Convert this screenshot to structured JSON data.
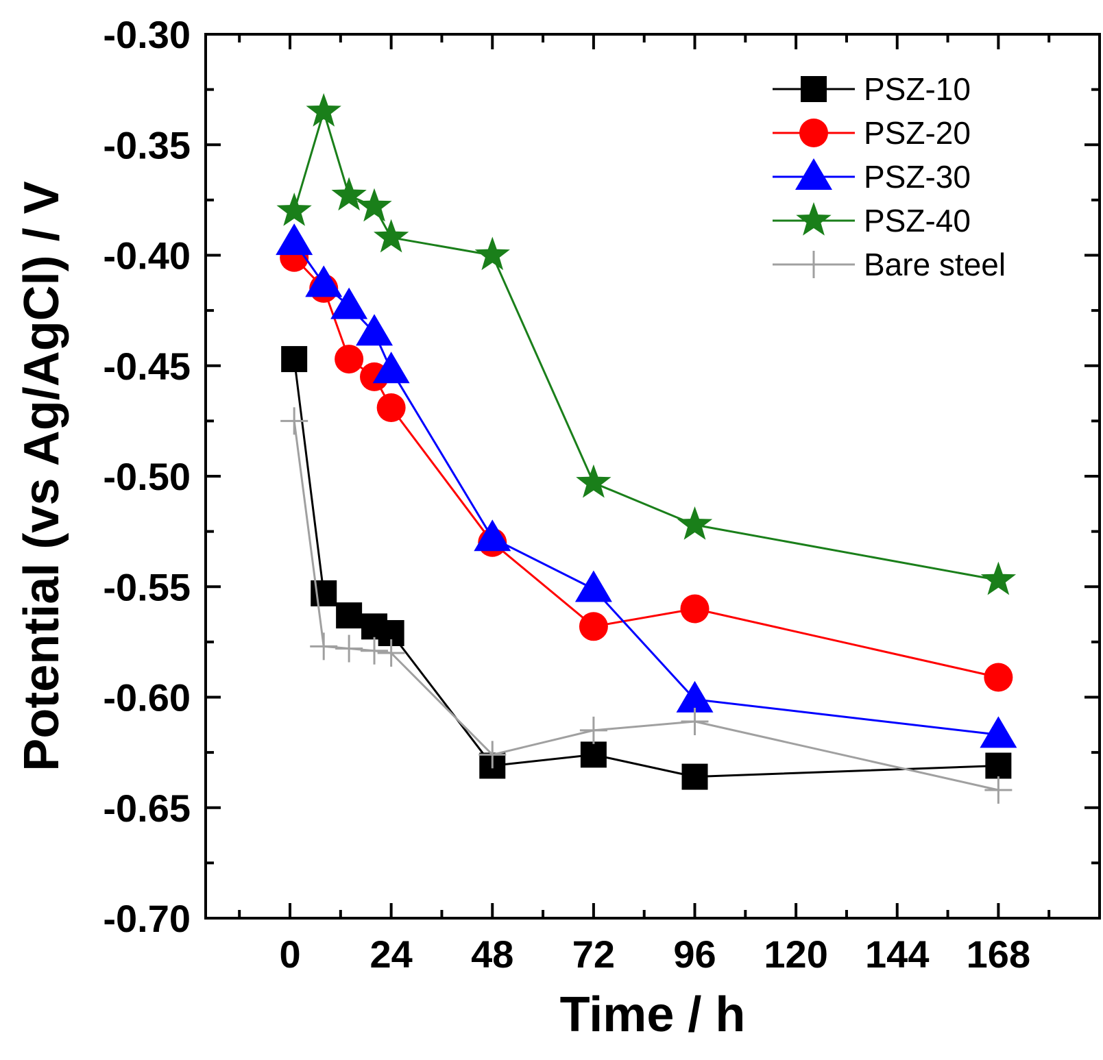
{
  "chart_data": {
    "type": "line",
    "xlabel": "Time / h",
    "ylabel": "Potential (vs Ag/AgCl) / V",
    "xlim": [
      -20,
      192
    ],
    "ylim": [
      -0.7,
      -0.3
    ],
    "x_ticks": [
      "0",
      "24",
      "48",
      "72",
      "96",
      "120",
      "144",
      "168"
    ],
    "y_ticks": [
      "-0.30",
      "-0.35",
      "-0.40",
      "-0.45",
      "-0.50",
      "-0.55",
      "-0.60",
      "-0.65",
      "-0.70"
    ],
    "legend_position": "top-right",
    "grid": false,
    "series": [
      {
        "name": "PSZ-10",
        "color": "#000000",
        "marker": "square",
        "x": [
          1,
          8,
          14,
          20,
          24,
          48,
          72,
          96,
          168
        ],
        "y": [
          -0.447,
          -0.553,
          -0.563,
          -0.568,
          -0.571,
          -0.631,
          -0.626,
          -0.636,
          -0.631
        ]
      },
      {
        "name": "PSZ-20",
        "color": "#ff0000",
        "marker": "circle",
        "x": [
          1,
          8,
          14,
          20,
          24,
          48,
          72,
          96,
          168
        ],
        "y": [
          -0.401,
          -0.415,
          -0.447,
          -0.455,
          -0.469,
          -0.53,
          -0.568,
          -0.56,
          -0.591
        ]
      },
      {
        "name": "PSZ-30",
        "color": "#0000ff",
        "marker": "triangle",
        "x": [
          1,
          8,
          14,
          20,
          24,
          48,
          72,
          96,
          168
        ],
        "y": [
          -0.394,
          -0.413,
          -0.423,
          -0.435,
          -0.452,
          -0.528,
          -0.551,
          -0.601,
          -0.617
        ]
      },
      {
        "name": "PSZ-40",
        "color": "#1a7f1a",
        "marker": "star",
        "x": [
          1,
          8,
          14,
          20,
          24,
          48,
          72,
          96,
          168
        ],
        "y": [
          -0.38,
          -0.335,
          -0.373,
          -0.378,
          -0.392,
          -0.4,
          -0.503,
          -0.522,
          -0.547
        ]
      },
      {
        "name": "Bare steel",
        "color": "#a0a0a0",
        "marker": "plus",
        "x": [
          1,
          8,
          14,
          20,
          24,
          48,
          72,
          96,
          168
        ],
        "y": [
          -0.475,
          -0.577,
          -0.578,
          -0.579,
          -0.58,
          -0.626,
          -0.615,
          -0.611,
          -0.642
        ]
      }
    ]
  }
}
